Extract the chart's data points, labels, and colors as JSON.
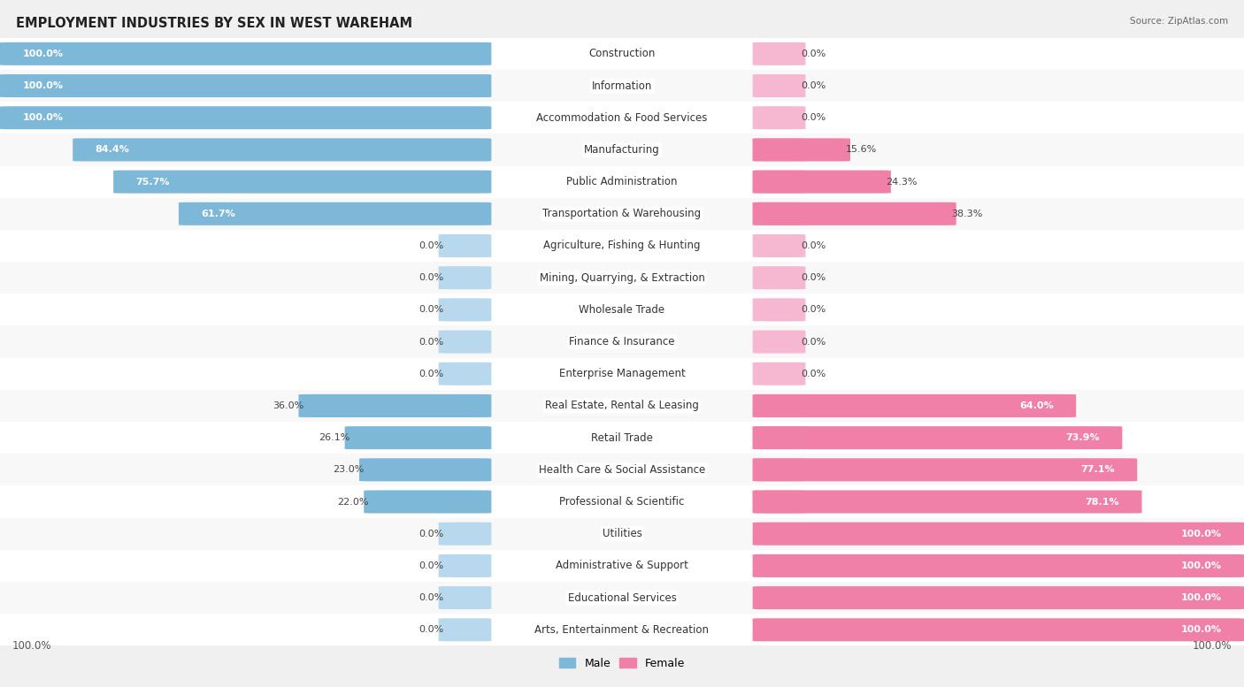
{
  "title": "EMPLOYMENT INDUSTRIES BY SEX IN WEST WAREHAM",
  "source": "Source: ZipAtlas.com",
  "categories": [
    "Construction",
    "Information",
    "Accommodation & Food Services",
    "Manufacturing",
    "Public Administration",
    "Transportation & Warehousing",
    "Agriculture, Fishing & Hunting",
    "Mining, Quarrying, & Extraction",
    "Wholesale Trade",
    "Finance & Insurance",
    "Enterprise Management",
    "Real Estate, Rental & Leasing",
    "Retail Trade",
    "Health Care & Social Assistance",
    "Professional & Scientific",
    "Utilities",
    "Administrative & Support",
    "Educational Services",
    "Arts, Entertainment & Recreation"
  ],
  "male_pct": [
    100.0,
    100.0,
    100.0,
    84.4,
    75.7,
    61.7,
    0.0,
    0.0,
    0.0,
    0.0,
    0.0,
    36.0,
    26.1,
    23.0,
    22.0,
    0.0,
    0.0,
    0.0,
    0.0
  ],
  "female_pct": [
    0.0,
    0.0,
    0.0,
    15.6,
    24.3,
    38.3,
    0.0,
    0.0,
    0.0,
    0.0,
    0.0,
    64.0,
    73.9,
    77.1,
    78.1,
    100.0,
    100.0,
    100.0,
    100.0
  ],
  "male_color": "#7eb8d8",
  "female_color": "#f080a8",
  "male_color_stub": "#b8d8ee",
  "female_color_stub": "#f5b8d0",
  "bg_color": "#f0f0f0",
  "row_bg_odd": "#ffffff",
  "row_bg_even": "#f8f8f8",
  "label_fontsize": 8.5,
  "title_fontsize": 10.5,
  "value_fontsize": 8.0,
  "stub_pct": 6.0
}
